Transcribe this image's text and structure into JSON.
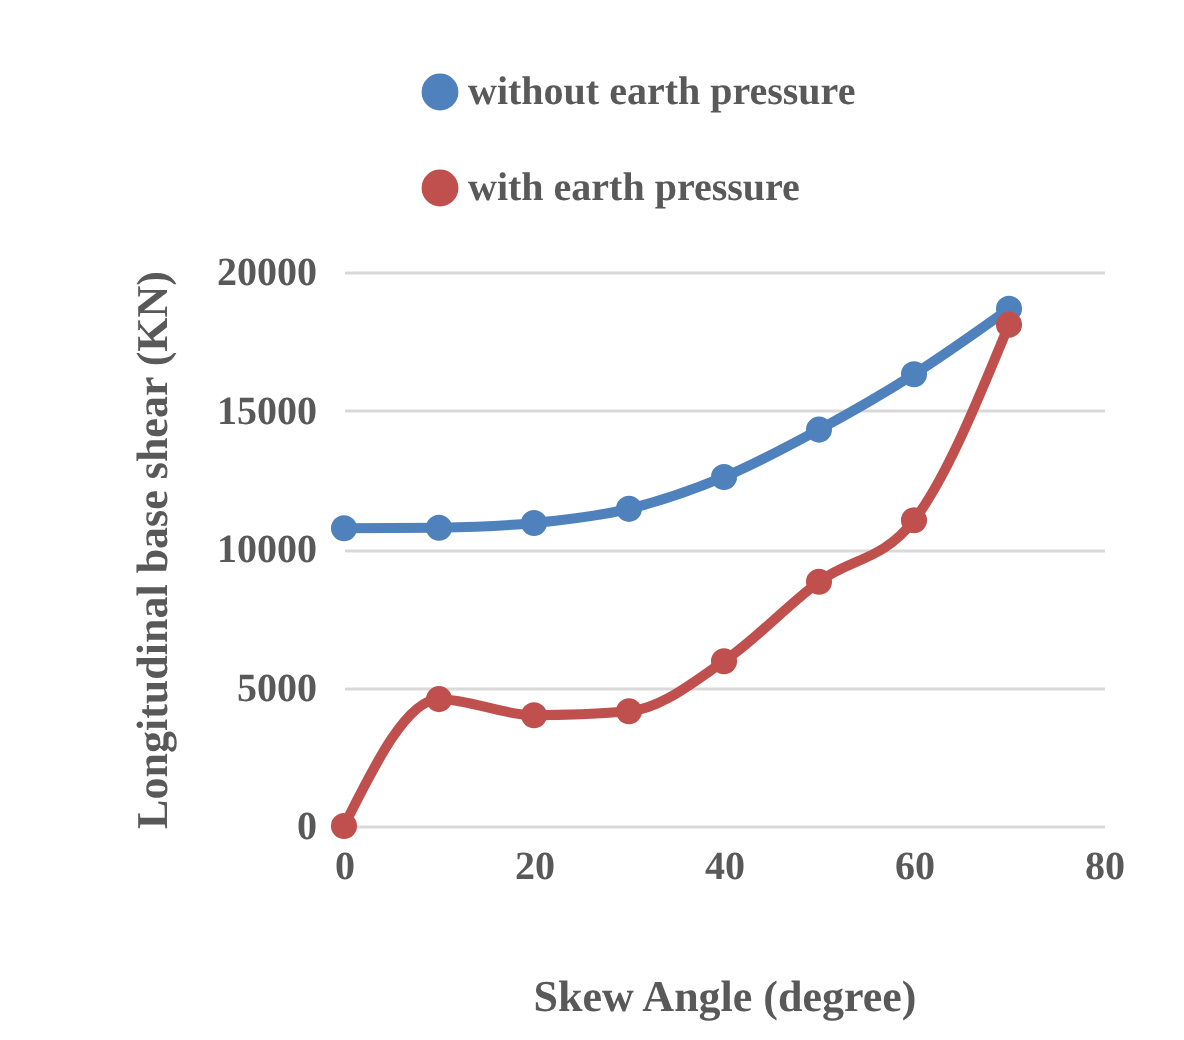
{
  "chart_data": {
    "type": "line",
    "xlabel": "Skew Angle (degree)",
    "ylabel": "Longitudinal base shear (KN)",
    "x": [
      0,
      10,
      20,
      30,
      40,
      50,
      60,
      70
    ],
    "series": [
      {
        "name": "without earth pressure",
        "color": "#4f81bd",
        "values": [
          10750,
          10770,
          10940,
          11450,
          12600,
          14310,
          16310,
          18670
        ]
      },
      {
        "name": "with earth pressure",
        "color": "#c0504d",
        "values": [
          0,
          4580,
          4000,
          4140,
          5950,
          8820,
          11040,
          18100
        ]
      }
    ],
    "xlim": [
      0,
      80
    ],
    "xticks": [
      0,
      20,
      40,
      60,
      80
    ],
    "ylim": [
      0,
      20000
    ],
    "yticks": [
      0,
      5000,
      10000,
      15000,
      20000
    ],
    "grid": "y",
    "legend": "top",
    "marker": "circle",
    "line_style": "solid"
  }
}
